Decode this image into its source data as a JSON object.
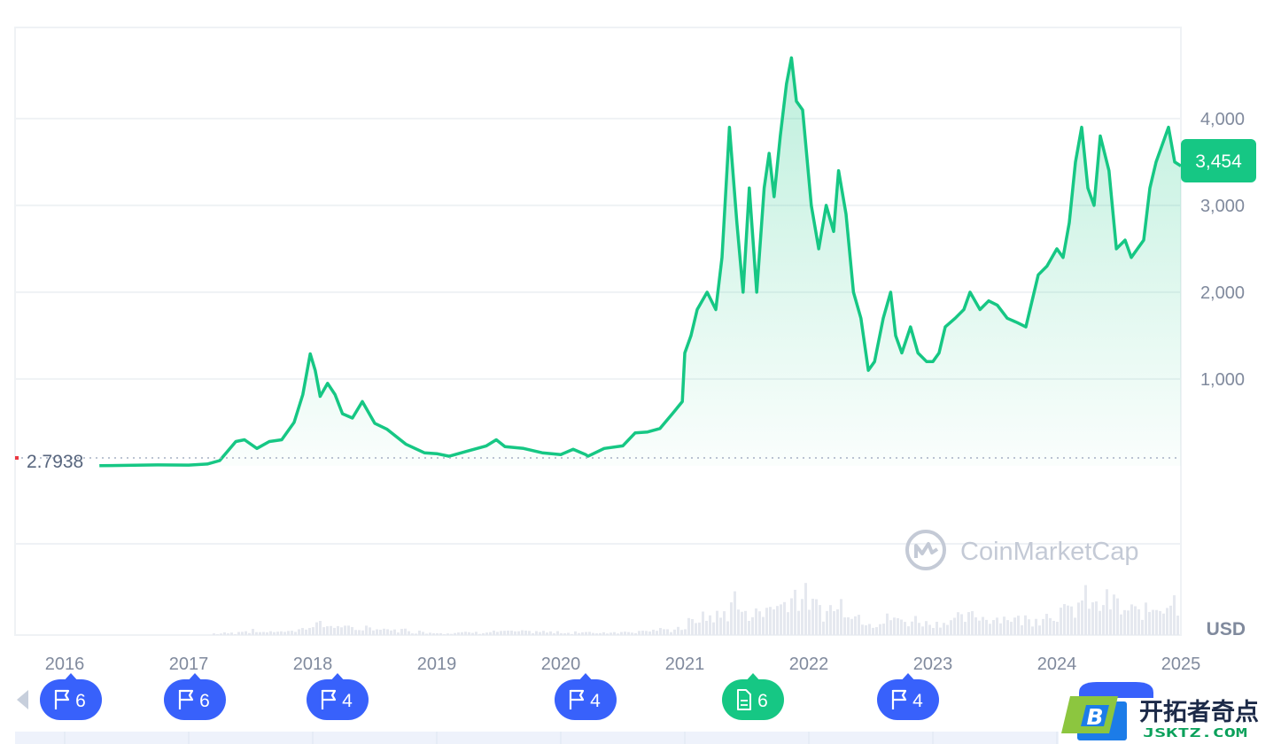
{
  "chart_data": {
    "type": "area",
    "currency_label": "USD",
    "current_price_label": "3,454",
    "baseline_label": "2.7938",
    "y_ticks": [
      {
        "value": 1000,
        "label": "1,000"
      },
      {
        "value": 2000,
        "label": "2,000"
      },
      {
        "value": 3000,
        "label": "3,000"
      },
      {
        "value": 4000,
        "label": "4,000"
      }
    ],
    "ylim": [
      -1950,
      5050
    ],
    "x_ticks": [
      {
        "value": 2016,
        "label": "2016"
      },
      {
        "value": 2017,
        "label": "2017"
      },
      {
        "value": 2018,
        "label": "2018"
      },
      {
        "value": 2019,
        "label": "2019"
      },
      {
        "value": 2020,
        "label": "2020"
      },
      {
        "value": 2021,
        "label": "2021"
      },
      {
        "value": 2022,
        "label": "2022"
      },
      {
        "value": 2023,
        "label": "2023"
      },
      {
        "value": 2024,
        "label": "2024"
      },
      {
        "value": 2025,
        "label": "2025"
      }
    ],
    "xlim": [
      2015.6,
      2025.0
    ],
    "grid": true,
    "x": [
      2016.28,
      2016.5,
      2016.75,
      2017.0,
      2017.15,
      2017.25,
      2017.38,
      2017.45,
      2017.55,
      2017.65,
      2017.75,
      2017.85,
      2017.92,
      2017.98,
      2018.02,
      2018.06,
      2018.12,
      2018.18,
      2018.24,
      2018.32,
      2018.4,
      2018.5,
      2018.6,
      2018.75,
      2018.9,
      2019.0,
      2019.1,
      2019.25,
      2019.4,
      2019.48,
      2019.55,
      2019.7,
      2019.85,
      2020.0,
      2020.1,
      2020.15,
      2020.2,
      2020.22,
      2020.35,
      2020.5,
      2020.6,
      2020.7,
      2020.8,
      2020.9,
      2020.98,
      2021.0,
      2021.05,
      2021.1,
      2021.18,
      2021.25,
      2021.3,
      2021.36,
      2021.42,
      2021.47,
      2021.52,
      2021.58,
      2021.64,
      2021.68,
      2021.72,
      2021.77,
      2021.82,
      2021.86,
      2021.9,
      2021.95,
      2022.02,
      2022.08,
      2022.14,
      2022.2,
      2022.24,
      2022.3,
      2022.36,
      2022.42,
      2022.48,
      2022.53,
      2022.6,
      2022.66,
      2022.7,
      2022.75,
      2022.82,
      2022.88,
      2022.95,
      2023.0,
      2023.05,
      2023.1,
      2023.18,
      2023.25,
      2023.3,
      2023.38,
      2023.45,
      2023.52,
      2023.6,
      2023.68,
      2023.75,
      2023.8,
      2023.85,
      2023.92,
      2024.0,
      2024.05,
      2024.1,
      2024.15,
      2024.2,
      2024.25,
      2024.3,
      2024.35,
      2024.42,
      2024.48,
      2024.55,
      2024.6,
      2024.65,
      2024.7,
      2024.75,
      2024.8,
      2024.85,
      2024.9,
      2024.95,
      2025.0
    ],
    "series": [
      {
        "values": [
          1,
          5,
          10,
          8,
          20,
          60,
          280,
          300,
          200,
          280,
          300,
          500,
          820,
          1290,
          1100,
          800,
          950,
          820,
          600,
          550,
          740,
          490,
          420,
          250,
          150,
          140,
          110,
          170,
          230,
          300,
          220,
          200,
          150,
          130,
          190,
          160,
          130,
          110,
          200,
          230,
          380,
          390,
          430,
          600,
          740,
          1300,
          1500,
          1800,
          2000,
          1800,
          2400,
          3900,
          2800,
          2000,
          3200,
          2000,
          3200,
          3600,
          3100,
          3800,
          4400,
          4700,
          4200,
          4100,
          3000,
          2500,
          3000,
          2700,
          3400,
          2900,
          2000,
          1700,
          1100,
          1200,
          1700,
          2000,
          1500,
          1300,
          1600,
          1300,
          1200,
          1200,
          1300,
          1600,
          1700,
          1800,
          2000,
          1800,
          1900,
          1850,
          1700,
          1650,
          1600,
          1900,
          2200,
          2300,
          2500,
          2400,
          2800,
          3500,
          3900,
          3200,
          3000,
          3800,
          3400,
          2500,
          2600,
          2400,
          2500,
          2600,
          3200,
          3500,
          3700,
          3900,
          3500,
          3454
        ]
      }
    ]
  },
  "watermark": {
    "text": "CoinMarketCap"
  },
  "events": [
    {
      "year": 2016.0,
      "count": "6",
      "kind": "flag"
    },
    {
      "year": 2017.0,
      "count": "6",
      "kind": "flag"
    },
    {
      "year": 2018.15,
      "count": "4",
      "kind": "flag"
    },
    {
      "year": 2020.15,
      "count": "4",
      "kind": "flag"
    },
    {
      "year": 2021.5,
      "count": "6",
      "kind": "doc"
    },
    {
      "year": 2022.75,
      "count": "4",
      "kind": "flag"
    }
  ],
  "colors": {
    "line": "#16c784",
    "flag_badge": "#3861fb",
    "doc_badge": "#16c784",
    "grid": "#eff2f5",
    "axis_text": "#808a9d"
  },
  "site_logo": {
    "letter": "B",
    "name": "开拓者奇点",
    "domain": "JSKTZ.COM"
  }
}
